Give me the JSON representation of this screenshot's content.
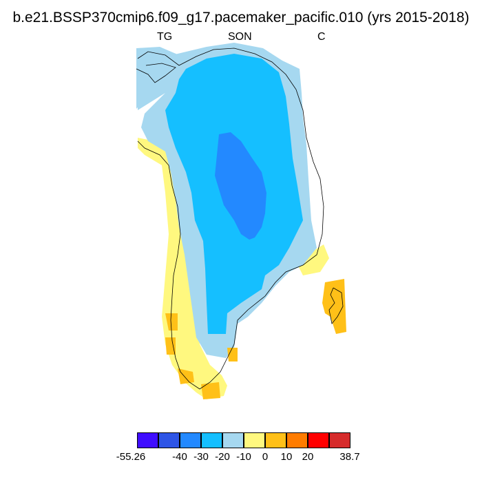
{
  "title": "b.e21.BSSP370cmip6.f09_g17.pacemaker_pacific.010 (yrs 2015-2018)",
  "subtitle_left": "TG",
  "subtitle_center": "SON",
  "subtitle_right": "C",
  "colorbar": {
    "colors": [
      "#3f0dff",
      "#2e55e6",
      "#2389ff",
      "#15bfff",
      "#a6d8f0",
      "#fff87f",
      "#ffc018",
      "#ff7c00",
      "#ff0000",
      "#d62b2b"
    ],
    "labels": [
      "-55.26",
      "-40",
      "-30",
      "-20",
      "-10",
      "0",
      "10",
      "20",
      "38.7"
    ]
  },
  "map_data": {
    "region": "Greenland",
    "variable": "TG",
    "season": "SON",
    "units": "C",
    "regions": [
      {
        "zone": "northwest fringe",
        "class": "-20 to -10"
      },
      {
        "zone": "north interior",
        "class": "-30 to -20"
      },
      {
        "zone": "central summit",
        "class": "-40 to -30"
      },
      {
        "zone": "east and west margins",
        "class": "-20 to -10"
      },
      {
        "zone": "southwest coast",
        "class": "-10 to 0"
      },
      {
        "zone": "southern tip",
        "class": "0 to 10"
      },
      {
        "zone": "southeast coast",
        "class": "0 to 10"
      }
    ]
  }
}
